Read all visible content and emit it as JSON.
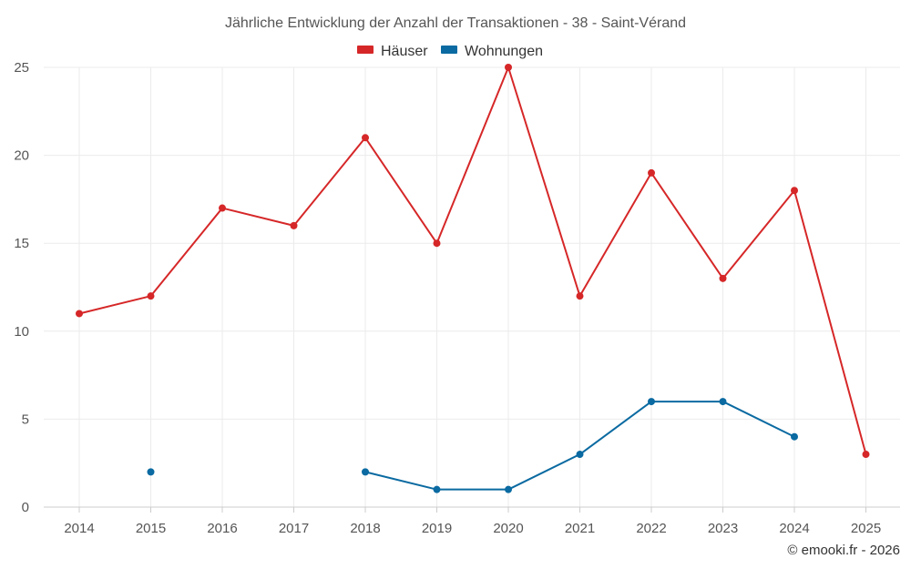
{
  "chart_data": {
    "type": "line",
    "title": "Jährliche Entwicklung der Anzahl der Transaktionen - 38 - Saint-Vérand",
    "x": [
      "2014",
      "2015",
      "2016",
      "2017",
      "2018",
      "2019",
      "2020",
      "2021",
      "2022",
      "2023",
      "2024",
      "2025"
    ],
    "ylim": [
      0,
      25
    ],
    "yticks": [
      0,
      5,
      10,
      15,
      20,
      25
    ],
    "grid": true,
    "legend_position": "top-center",
    "series": [
      {
        "name": "Häuser",
        "color": "#d62728",
        "values": [
          11,
          12,
          17,
          16,
          21,
          15,
          25,
          12,
          19,
          13,
          18,
          3
        ]
      },
      {
        "name": "Wohnungen",
        "color": "#0a6aa1",
        "values": [
          null,
          2,
          null,
          null,
          2,
          1,
          1,
          3,
          6,
          6,
          4,
          null
        ]
      }
    ]
  },
  "credit": "© emooki.fr - 2026"
}
